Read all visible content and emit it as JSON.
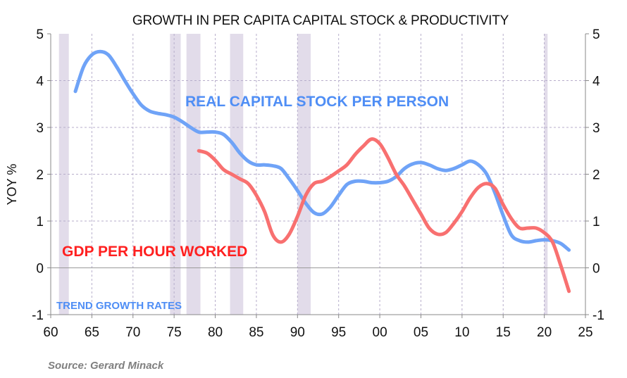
{
  "chart_data": {
    "type": "line",
    "title": "GROWTH IN PER CAPITA CAPITAL STOCK & PRODUCTIVITY",
    "xlabel": "",
    "ylabel": "YOY %",
    "xlim": [
      1960,
      2025
    ],
    "ylim": [
      -1,
      5
    ],
    "x_tick_values": [
      1960,
      1965,
      1970,
      1975,
      1980,
      1985,
      1990,
      1995,
      2000,
      2005,
      2010,
      2015,
      2020,
      2025
    ],
    "x_tick_labels": [
      "60",
      "65",
      "70",
      "75",
      "80",
      "85",
      "90",
      "95",
      "00",
      "05",
      "10",
      "15",
      "20",
      "25"
    ],
    "y_ticks": [
      -1,
      0,
      1,
      2,
      3,
      4,
      5
    ],
    "grid": true,
    "recession_bands": [
      [
        1961,
        1962.2
      ],
      [
        1974.5,
        1975.8
      ],
      [
        1976.5,
        1978.2
      ],
      [
        1981.8,
        1983.4
      ],
      [
        1990,
        1991.6
      ],
      [
        2020,
        2020.4
      ]
    ],
    "series": [
      {
        "name": "REAL CAPITAL STOCK PER PERSON",
        "color": "#6fa3f7",
        "x": [
          1963,
          1964,
          1965,
          1966,
          1967,
          1968,
          1969,
          1970,
          1971,
          1972,
          1973,
          1974,
          1975,
          1976,
          1977,
          1978,
          1979,
          1980,
          1981,
          1982,
          1983,
          1984,
          1985,
          1986,
          1987,
          1988,
          1989,
          1990,
          1991,
          1992,
          1993,
          1994,
          1995,
          1996,
          1997,
          1998,
          1999,
          2000,
          2001,
          2002,
          2003,
          2004,
          2005,
          2006,
          2007,
          2008,
          2009,
          2010,
          2011,
          2012,
          2013,
          2014,
          2015,
          2016,
          2017,
          2018,
          2019,
          2020,
          2021,
          2022,
          2023
        ],
        "values": [
          3.77,
          4.3,
          4.55,
          4.62,
          4.55,
          4.3,
          4.0,
          3.72,
          3.48,
          3.35,
          3.3,
          3.27,
          3.22,
          3.12,
          3.0,
          2.9,
          2.9,
          2.9,
          2.85,
          2.68,
          2.45,
          2.28,
          2.2,
          2.2,
          2.18,
          2.12,
          1.9,
          1.65,
          1.38,
          1.18,
          1.15,
          1.3,
          1.55,
          1.78,
          1.85,
          1.85,
          1.82,
          1.82,
          1.85,
          1.95,
          2.12,
          2.22,
          2.25,
          2.2,
          2.12,
          2.08,
          2.12,
          2.2,
          2.28,
          2.2,
          2.0,
          1.6,
          1.12,
          0.7,
          0.58,
          0.55,
          0.58,
          0.6,
          0.58,
          0.52,
          0.38
        ]
      },
      {
        "name": "GDP PER HOUR WORKED",
        "color": "#f87070",
        "x": [
          1978,
          1979,
          1980,
          1981,
          1982,
          1983,
          1984,
          1985,
          1986,
          1987,
          1988,
          1989,
          1990,
          1991,
          1992,
          1993,
          1994,
          1995,
          1996,
          1997,
          1998,
          1999,
          2000,
          2001,
          2002,
          2003,
          2004,
          2005,
          2006,
          2007,
          2008,
          2009,
          2010,
          2011,
          2012,
          2013,
          2014,
          2015,
          2016,
          2017,
          2018,
          2019,
          2020,
          2021,
          2022,
          2023
        ],
        "values": [
          2.5,
          2.45,
          2.3,
          2.1,
          2.0,
          1.9,
          1.8,
          1.55,
          1.2,
          0.7,
          0.55,
          0.72,
          1.1,
          1.55,
          1.8,
          1.85,
          1.95,
          2.07,
          2.2,
          2.42,
          2.6,
          2.75,
          2.65,
          2.35,
          2.0,
          1.75,
          1.45,
          1.15,
          0.85,
          0.72,
          0.75,
          0.95,
          1.2,
          1.5,
          1.72,
          1.8,
          1.7,
          1.35,
          1.05,
          0.85,
          0.85,
          0.85,
          0.75,
          0.55,
          0.05,
          -0.5
        ]
      }
    ],
    "annotations": {
      "capital": "REAL CAPITAL STOCK PER PERSON",
      "gdp": "GDP PER HOUR WORKED",
      "trend": "TREND  GROWTH  RATES"
    },
    "source": "Source: Gerard Minack"
  }
}
